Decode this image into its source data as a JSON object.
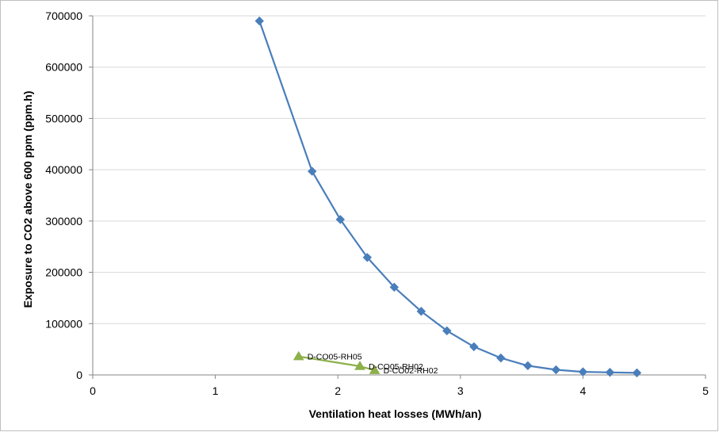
{
  "chart_data": {
    "type": "scatter",
    "title": "",
    "xlabel": "Ventilation heat losses (MWh/an)",
    "ylabel": "Exposure to CO2 above 600 ppm (ppm.h)",
    "xlim": [
      0,
      5
    ],
    "ylim": [
      0,
      700000
    ],
    "x_ticks": [
      "0",
      "1",
      "2",
      "3",
      "4",
      "5"
    ],
    "y_ticks": [
      "0",
      "100000",
      "200000",
      "300000",
      "400000",
      "500000",
      "600000",
      "700000"
    ],
    "grid": true,
    "legend": "none",
    "series": [
      {
        "marker": "diamond",
        "color": "#4a7ebb",
        "line": true,
        "x": [
          1.36,
          1.79,
          2.02,
          2.24,
          2.46,
          2.68,
          2.89,
          3.11,
          3.33,
          3.55,
          3.78,
          4.0,
          4.22,
          4.44
        ],
        "y": [
          690000,
          397000,
          303000,
          229000,
          171000,
          124000,
          86000,
          55000,
          33000,
          18000,
          10000,
          6000,
          5000,
          4000
        ]
      },
      {
        "marker": "triangle",
        "color": "#8db04a",
        "line": true,
        "x": [
          1.68,
          2.18,
          2.3
        ],
        "y": [
          36000,
          17000,
          9000
        ],
        "labels": [
          "D-CO05-RH05",
          "D-CO05-RH02",
          "D-CO02-RH02"
        ]
      }
    ]
  }
}
